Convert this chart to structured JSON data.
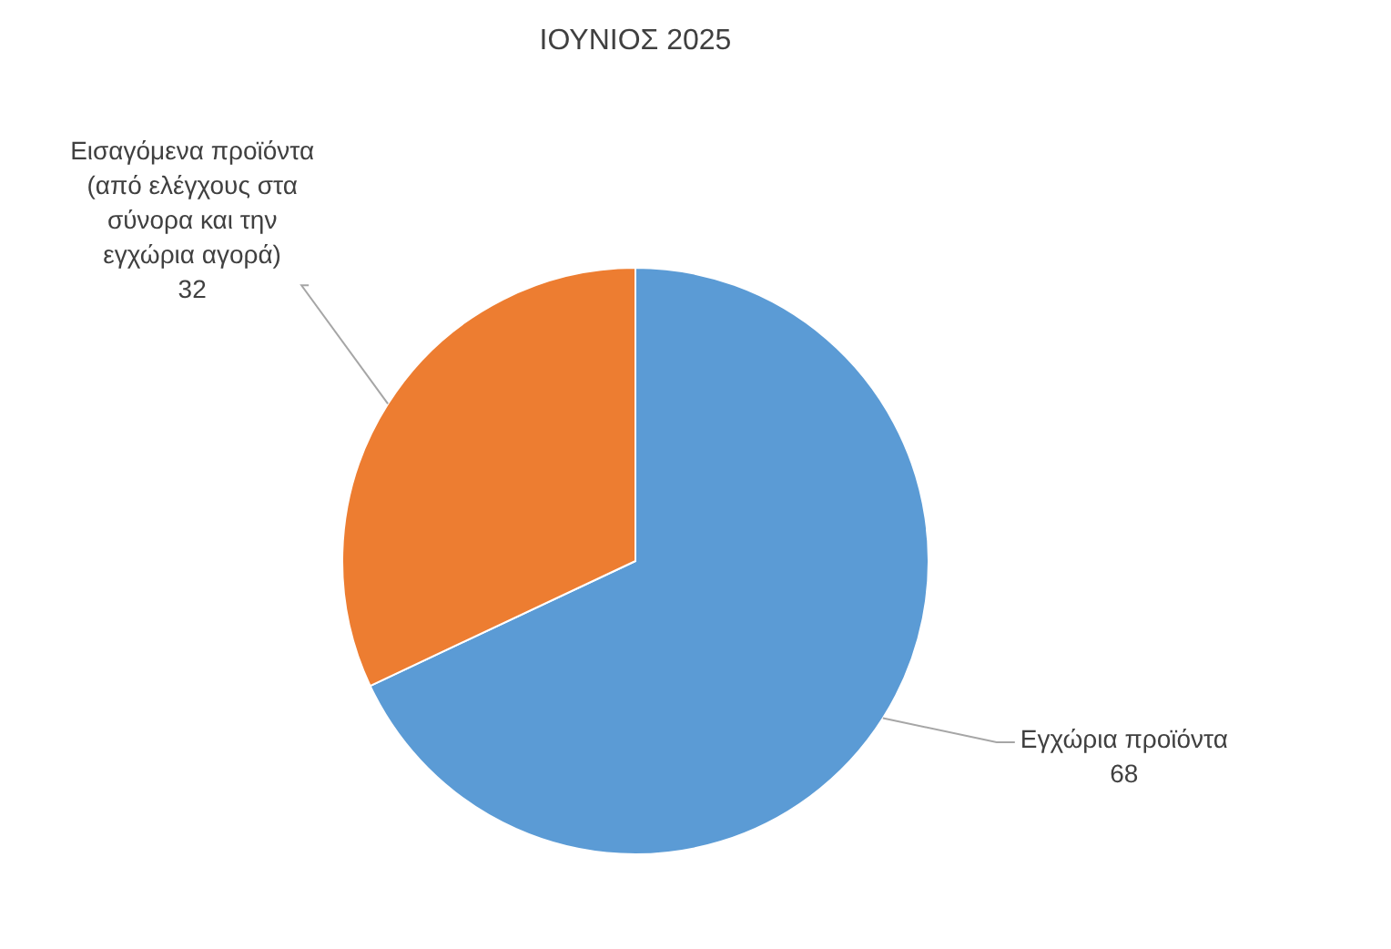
{
  "chart_data": {
    "type": "pie",
    "title": "ΙΟΥΝΙΟΣ 2025",
    "categories": [
      "Εγχώρια προϊόντα",
      "Εισαγόμενα προϊόντα (από ελέγχους στα σύνορα και την εγχώρια αγορά)"
    ],
    "values": [
      68,
      32
    ],
    "colors": [
      "#5b9bd5",
      "#ed7d31"
    ],
    "data_labels": true,
    "legend": false
  }
}
